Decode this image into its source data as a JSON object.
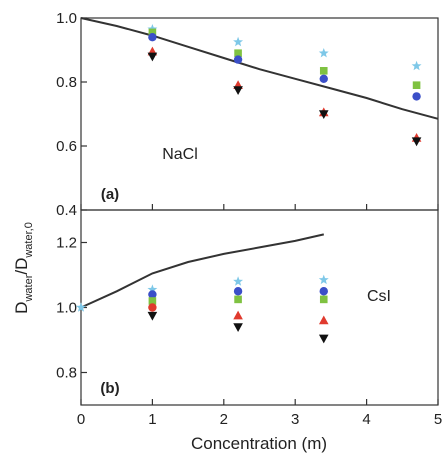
{
  "figure": {
    "ylabel_main": "D",
    "ylabel_sub1": "water",
    "ylabel_mid": "/D",
    "ylabel_sub2": "water,0",
    "xlabel": "Concentration (m)"
  },
  "chart_data": [
    {
      "type": "scatter",
      "panel_letter": "(a)",
      "annotation": "NaCl",
      "xlim": [
        0,
        5
      ],
      "ylim": [
        0.4,
        1.0
      ],
      "y_ticks": [
        "0.4",
        "0.6",
        "0.8",
        "1.0"
      ],
      "x_ticks": [
        "0",
        "1",
        "2",
        "3",
        "4",
        "5"
      ],
      "line": {
        "x": [
          0,
          0.5,
          1,
          1.5,
          2,
          2.5,
          3,
          3.5,
          4,
          4.5,
          5
        ],
        "y": [
          1.0,
          0.975,
          0.945,
          0.91,
          0.875,
          0.84,
          0.81,
          0.78,
          0.75,
          0.715,
          0.685
        ],
        "color": "#333333"
      },
      "series": [
        {
          "marker": "star",
          "color": "#7ec8e8",
          "x": [
            1.0,
            2.2,
            3.4,
            4.7
          ],
          "y": [
            0.965,
            0.925,
            0.89,
            0.85
          ]
        },
        {
          "marker": "square",
          "color": "#7fc241",
          "x": [
            1.0,
            2.2,
            3.4,
            4.7
          ],
          "y": [
            0.955,
            0.89,
            0.835,
            0.79
          ]
        },
        {
          "marker": "circle",
          "color": "#3b4fc8",
          "x": [
            1.0,
            2.2,
            3.4,
            4.7
          ],
          "y": [
            0.94,
            0.87,
            0.81,
            0.755
          ]
        },
        {
          "marker": "triangle-up",
          "color": "#e03a2e",
          "x": [
            1.0,
            2.2,
            3.4,
            4.7
          ],
          "y": [
            0.895,
            0.79,
            0.705,
            0.625
          ]
        },
        {
          "marker": "triangle-down",
          "color": "#111111",
          "x": [
            1.0,
            2.2,
            3.4,
            4.7
          ],
          "y": [
            0.88,
            0.775,
            0.7,
            0.615
          ]
        }
      ]
    },
    {
      "type": "scatter",
      "panel_letter": "(b)",
      "annotation": "CsI",
      "xlim": [
        0,
        5
      ],
      "ylim": [
        0.7,
        1.3
      ],
      "y_ticks": [
        "0.8",
        "1.0",
        "1.2"
      ],
      "x_ticks": [
        "0",
        "1",
        "2",
        "3",
        "4",
        "5"
      ],
      "line": {
        "x": [
          0,
          0.5,
          1,
          1.5,
          2,
          2.5,
          3,
          3.4
        ],
        "y": [
          1.0,
          1.05,
          1.105,
          1.14,
          1.165,
          1.185,
          1.205,
          1.225
        ],
        "color": "#333333"
      },
      "series": [
        {
          "marker": "star",
          "color": "#7ec8e8",
          "x": [
            0.0,
            1.0,
            2.2,
            3.4
          ],
          "y": [
            1.0,
            1.055,
            1.08,
            1.085
          ]
        },
        {
          "marker": "circle",
          "color": "#3b4fc8",
          "x": [
            1.0,
            2.2,
            3.4
          ],
          "y": [
            1.04,
            1.05,
            1.05
          ]
        },
        {
          "marker": "square",
          "color": "#7fc241",
          "x": [
            1.0,
            2.2,
            3.4
          ],
          "y": [
            1.02,
            1.025,
            1.025
          ]
        },
        {
          "marker": "circle",
          "color": "#e03a2e",
          "x": [
            1.0
          ],
          "y": [
            1.0
          ]
        },
        {
          "marker": "triangle-up",
          "color": "#e03a2e",
          "x": [
            2.2,
            3.4
          ],
          "y": [
            0.975,
            0.96
          ]
        },
        {
          "marker": "triangle-down",
          "color": "#111111",
          "x": [
            1.0,
            2.2,
            3.4
          ],
          "y": [
            0.975,
            0.94,
            0.905
          ]
        }
      ]
    }
  ]
}
